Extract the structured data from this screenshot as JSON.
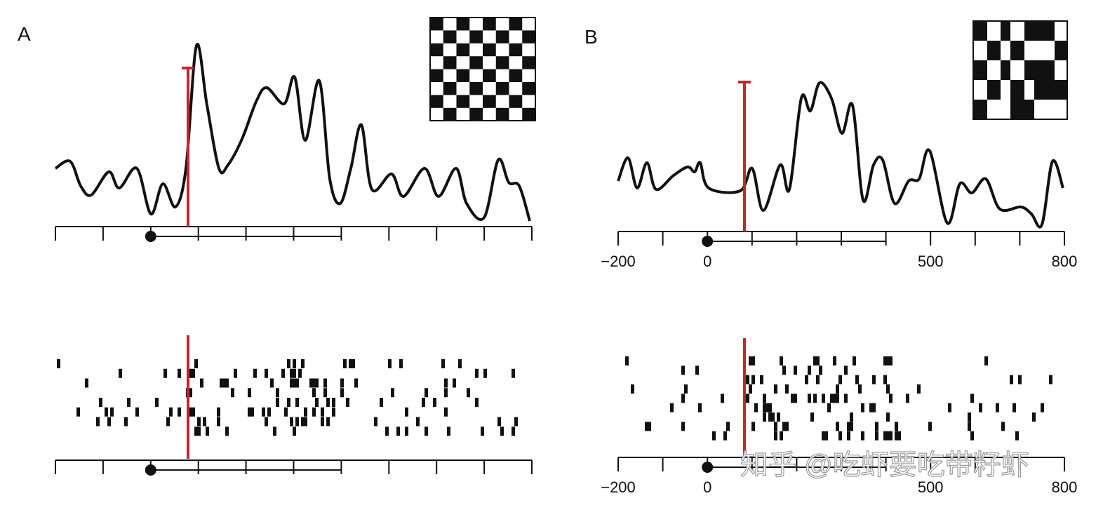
{
  "panels": [
    {
      "label": "A",
      "xlim": [
        -200,
        800
      ],
      "xticks": [
        -200,
        -100,
        0,
        100,
        200,
        300,
        400,
        500,
        600,
        700,
        800
      ]
    },
    {
      "label": "B",
      "xlim": [
        -200,
        800
      ],
      "xticks": [
        -200,
        -100,
        0,
        100,
        200,
        300,
        400,
        500,
        600,
        700,
        800
      ],
      "tick_labels": [
        {
          "value": -200,
          "label": "−200"
        },
        {
          "value": 0,
          "label": "0"
        },
        {
          "value": 500,
          "label": "500"
        },
        {
          "value": 800,
          "label": "800"
        }
      ]
    }
  ],
  "watermark": "知乎 @吃虾要吃带籽虾"
}
